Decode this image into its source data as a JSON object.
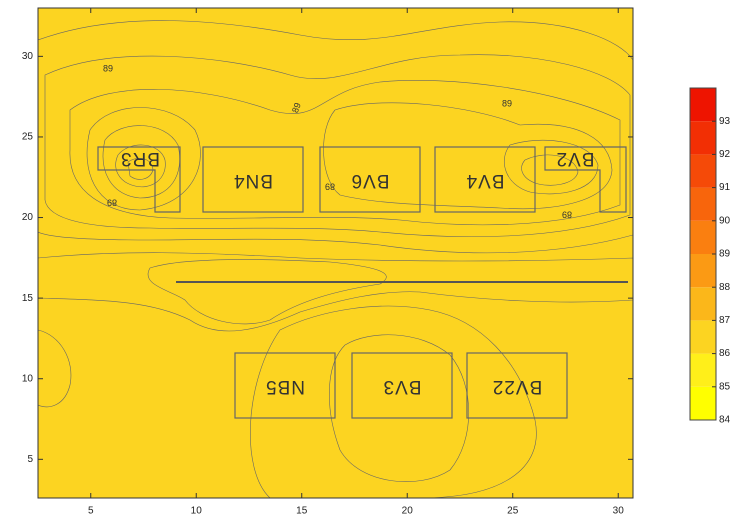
{
  "chart_data": {
    "type": "contour",
    "xlim": [
      2.5,
      30.7
    ],
    "ylim": [
      2.6,
      33
    ],
    "xticks": [
      5,
      10,
      15,
      20,
      25,
      30
    ],
    "yticks": [
      5,
      10,
      15,
      20,
      25,
      30
    ],
    "levels": [
      84,
      85,
      86,
      87,
      88,
      89,
      90,
      91,
      92,
      93
    ],
    "colors": [
      "#ffff00",
      "#ffef1a",
      "#fcd421",
      "#fbb71a",
      "#fb9a14",
      "#fa7f10",
      "#f8650c",
      "#f54a08",
      "#f22f04",
      "#ee1400"
    ],
    "clim": [
      84,
      94
    ],
    "annotations": [
      "BR3",
      "BN4",
      "BV6",
      "BV4",
      "BV2",
      "NB5",
      "BV3",
      "BV22"
    ],
    "contour_labels": [
      89,
      89,
      89,
      89,
      89,
      89
    ]
  }
}
